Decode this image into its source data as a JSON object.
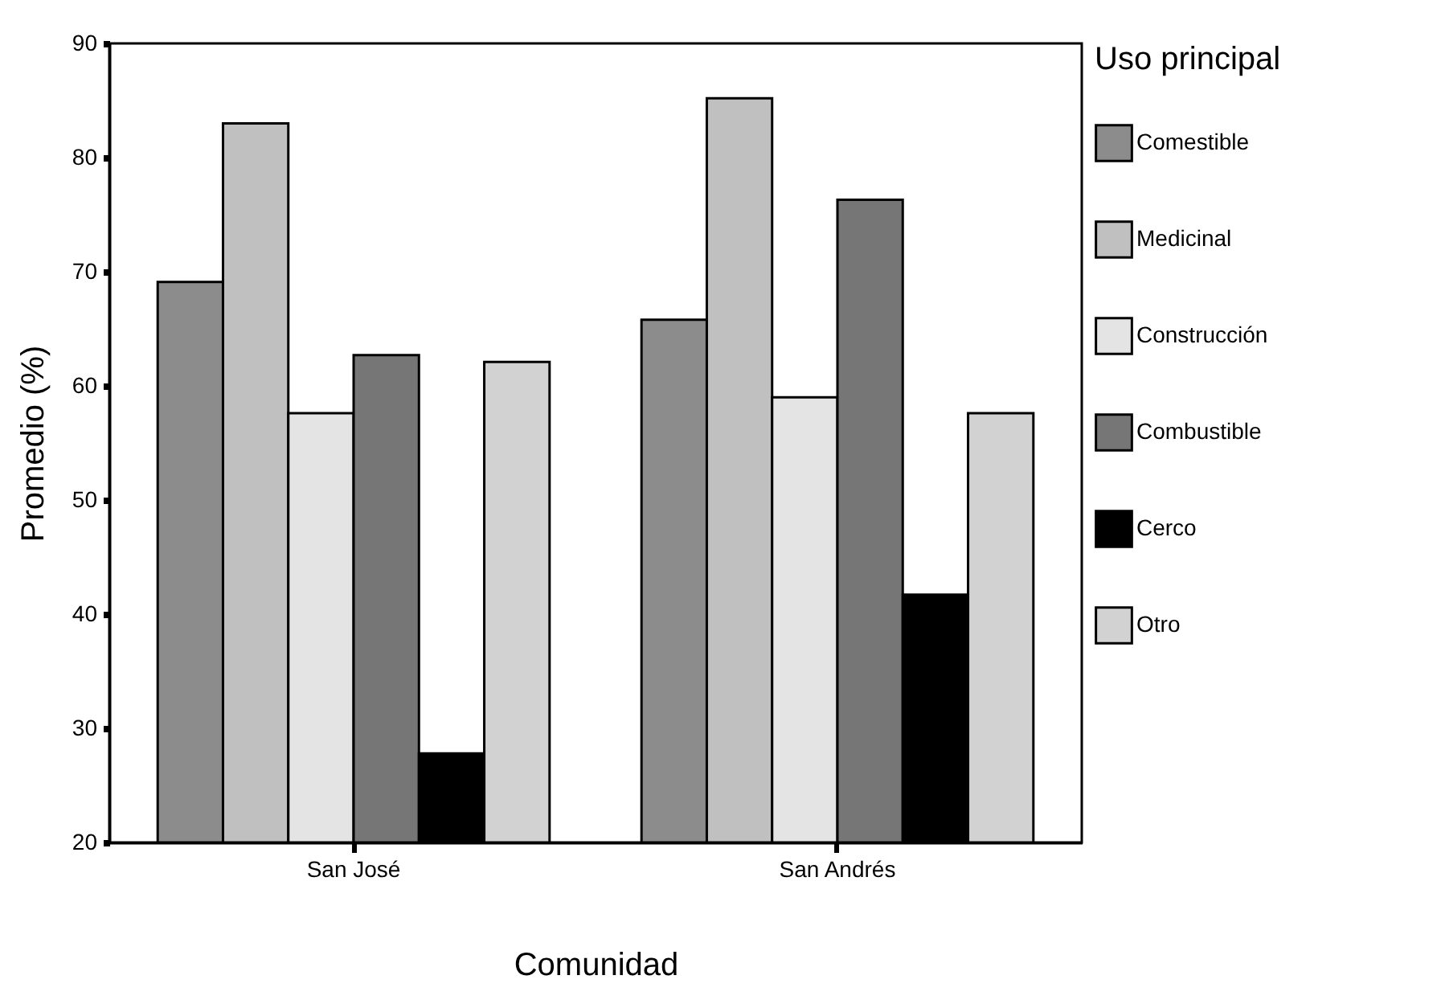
{
  "chart_data": {
    "type": "bar",
    "xlabel": "Comunidad",
    "ylabel": "Promedio (%)",
    "legend_title": "Uso principal",
    "categories": [
      "San José",
      "San Andrés"
    ],
    "series": [
      {
        "name": "Comestible",
        "color": "#8c8c8c",
        "values": [
          69.1,
          65.8
        ]
      },
      {
        "name": "Medicinal",
        "color": "#c0c0c0",
        "values": [
          83.0,
          85.2
        ]
      },
      {
        "name": "Construcción",
        "color": "#e4e4e4",
        "values": [
          57.6,
          59.0
        ]
      },
      {
        "name": "Combustible",
        "color": "#767676",
        "values": [
          62.7,
          76.3
        ]
      },
      {
        "name": "Cerco",
        "color": "#000000",
        "values": [
          27.8,
          41.7
        ]
      },
      {
        "name": "Otro",
        "color": "#d2d2d2",
        "values": [
          62.1,
          57.6
        ]
      }
    ],
    "ylim": [
      20,
      90
    ],
    "yticks": [
      20,
      30,
      40,
      50,
      60,
      70,
      80,
      90
    ],
    "grid": false,
    "legend": "right"
  }
}
